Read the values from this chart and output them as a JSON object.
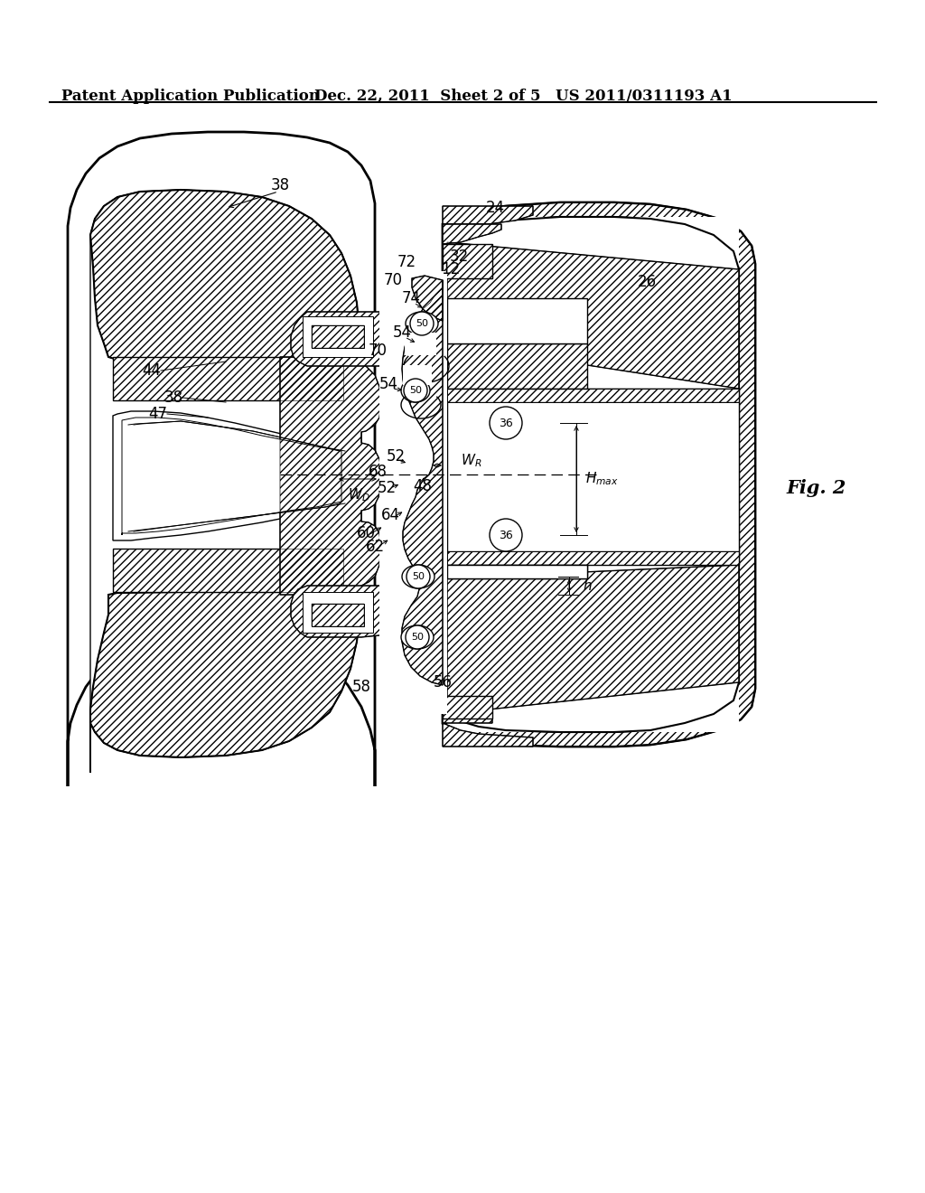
{
  "header_left": "Patent Application Publication",
  "header_mid": "Dec. 22, 2011  Sheet 2 of 5",
  "header_right": "US 2011/0311193 A1",
  "fig_label": "Fig. 2",
  "background_color": "#ffffff",
  "line_color": "#000000",
  "header_fontsize": 13,
  "label_fontsize": 12
}
